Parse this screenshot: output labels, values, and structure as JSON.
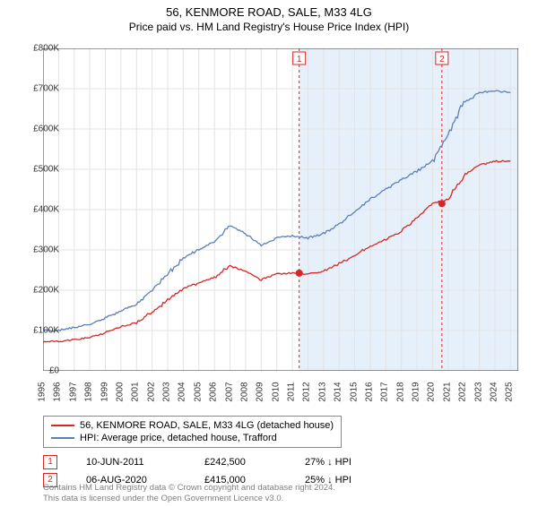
{
  "title": "56, KENMORE ROAD, SALE, M33 4LG",
  "subtitle": "Price paid vs. HM Land Registry's House Price Index (HPI)",
  "chart": {
    "type": "line",
    "background_color": "#ffffff",
    "grid_color": "#e3e3e3",
    "axis_color": "#333333",
    "xlim": [
      1995,
      2025.5
    ],
    "ylim": [
      0,
      800000
    ],
    "y_ticks": [
      0,
      100000,
      200000,
      300000,
      400000,
      500000,
      600000,
      700000,
      800000
    ],
    "y_tick_labels": [
      "£0",
      "£100K",
      "£200K",
      "£300K",
      "£400K",
      "£500K",
      "£600K",
      "£700K",
      "£800K"
    ],
    "x_ticks": [
      1995,
      1996,
      1997,
      1998,
      1999,
      2000,
      2001,
      2002,
      2003,
      2004,
      2005,
      2006,
      2007,
      2008,
      2009,
      2010,
      2011,
      2012,
      2013,
      2014,
      2015,
      2016,
      2017,
      2018,
      2019,
      2020,
      2021,
      2022,
      2023,
      2024,
      2025
    ],
    "shaded_region": {
      "x_start": 2011.44,
      "x_end": 2025.5,
      "color": "#e6f0fa"
    },
    "series": [
      {
        "name": "hpi",
        "label": "HPI: Average price, detached house, Trafford",
        "color": "#5b7fb8",
        "line_width": 1.3,
        "points": [
          [
            1995,
            100000
          ],
          [
            1996,
            100000
          ],
          [
            1997,
            108000
          ],
          [
            1998,
            115000
          ],
          [
            1999,
            130000
          ],
          [
            2000,
            150000
          ],
          [
            2001,
            165000
          ],
          [
            2002,
            200000
          ],
          [
            2003,
            240000
          ],
          [
            2004,
            280000
          ],
          [
            2005,
            300000
          ],
          [
            2006,
            320000
          ],
          [
            2007,
            360000
          ],
          [
            2008,
            340000
          ],
          [
            2009,
            310000
          ],
          [
            2010,
            330000
          ],
          [
            2011,
            335000
          ],
          [
            2012,
            330000
          ],
          [
            2013,
            340000
          ],
          [
            2014,
            365000
          ],
          [
            2015,
            395000
          ],
          [
            2016,
            425000
          ],
          [
            2017,
            450000
          ],
          [
            2018,
            475000
          ],
          [
            2019,
            495000
          ],
          [
            2020,
            520000
          ],
          [
            2021,
            585000
          ],
          [
            2022,
            665000
          ],
          [
            2023,
            690000
          ],
          [
            2024,
            695000
          ],
          [
            2025,
            690000
          ]
        ]
      },
      {
        "name": "property",
        "label": "56, KENMORE ROAD, SALE, M33 4LG (detached house)",
        "color": "#d62728",
        "line_width": 1.3,
        "points": [
          [
            1995,
            72000
          ],
          [
            1996,
            73000
          ],
          [
            1997,
            78000
          ],
          [
            1998,
            83000
          ],
          [
            1999,
            95000
          ],
          [
            2000,
            109000
          ],
          [
            2001,
            120000
          ],
          [
            2002,
            145000
          ],
          [
            2003,
            175000
          ],
          [
            2004,
            204000
          ],
          [
            2005,
            218000
          ],
          [
            2006,
            232000
          ],
          [
            2007,
            261000
          ],
          [
            2008,
            247000
          ],
          [
            2009,
            226000
          ],
          [
            2010,
            240000
          ],
          [
            2011,
            242500
          ],
          [
            2012,
            240000
          ],
          [
            2013,
            247000
          ],
          [
            2014,
            265000
          ],
          [
            2015,
            287000
          ],
          [
            2016,
            309000
          ],
          [
            2017,
            327000
          ],
          [
            2018,
            346000
          ],
          [
            2019,
            380000
          ],
          [
            2020,
            415000
          ],
          [
            2021,
            426000
          ],
          [
            2022,
            485000
          ],
          [
            2023,
            510000
          ],
          [
            2024,
            520000
          ],
          [
            2025,
            520000
          ]
        ]
      }
    ],
    "markers": [
      {
        "id": "1",
        "x": 2011.44,
        "y": 242500,
        "line_color": "#d62728",
        "line_style": "dashed",
        "box_color": "#d62728",
        "box_text": "1"
      },
      {
        "id": "2",
        "x": 2020.6,
        "y": 415000,
        "line_color": "#d62728",
        "line_style": "dashed",
        "box_color": "#d62728",
        "box_text": "2"
      }
    ]
  },
  "legend": {
    "border_color": "#888888",
    "items": [
      {
        "color": "#d62728",
        "label": "56, KENMORE ROAD, SALE, M33 4LG (detached house)"
      },
      {
        "color": "#5b7fb8",
        "label": "HPI: Average price, detached house, Trafford"
      }
    ]
  },
  "sales": [
    {
      "marker": "1",
      "marker_color": "#d62728",
      "date": "10-JUN-2011",
      "price": "£242,500",
      "delta": "27% ↓ HPI"
    },
    {
      "marker": "2",
      "marker_color": "#d62728",
      "date": "06-AUG-2020",
      "price": "£415,000",
      "delta": "25% ↓ HPI"
    }
  ],
  "footer_lines": [
    "Contains HM Land Registry data © Crown copyright and database right 2024.",
    "This data is licensed under the Open Government Licence v3.0."
  ]
}
